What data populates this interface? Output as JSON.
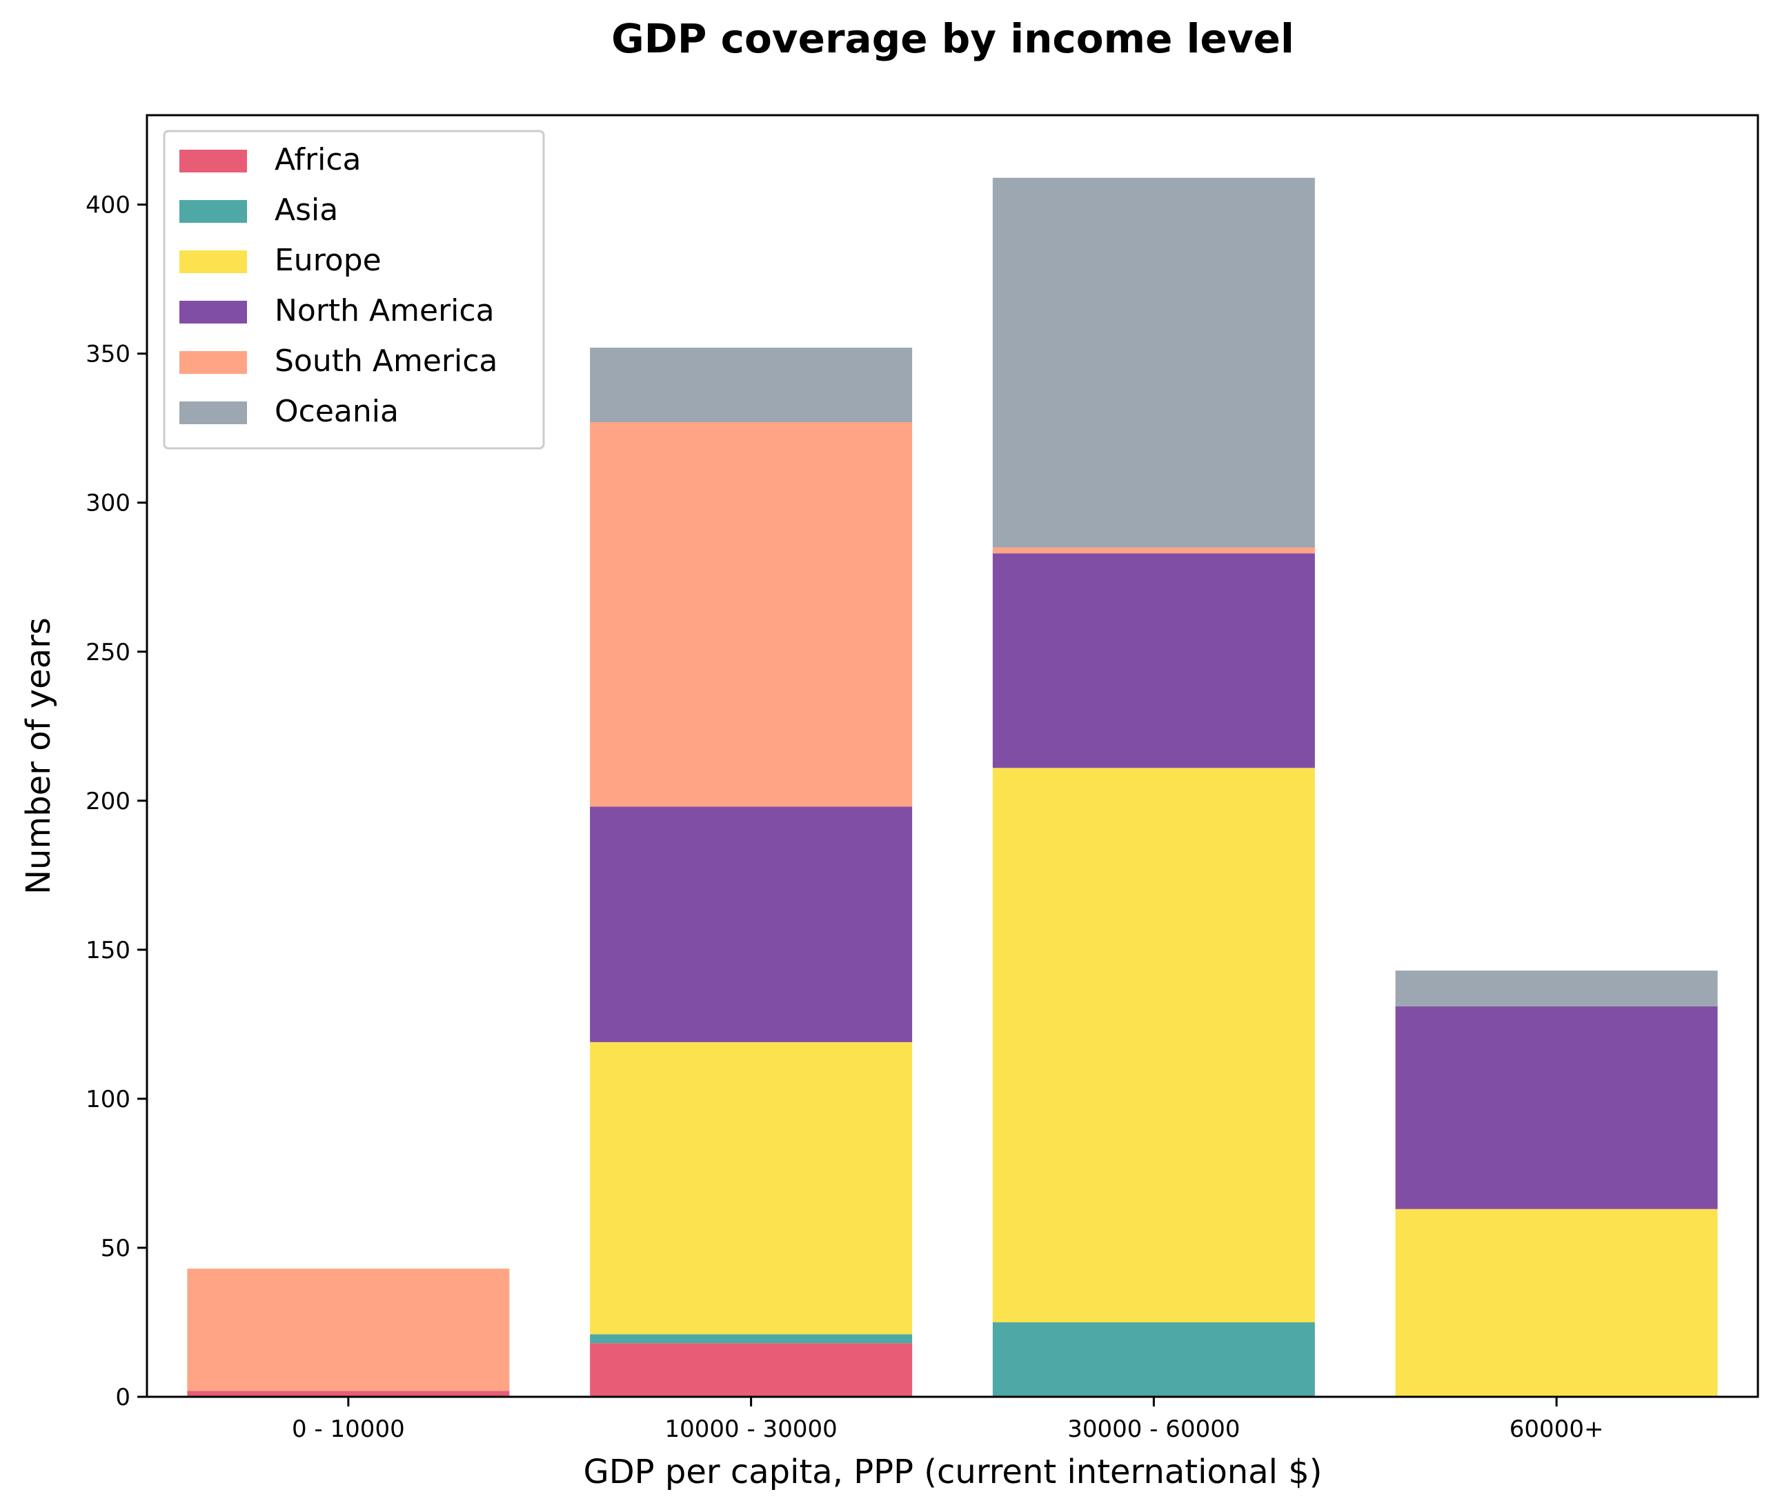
{
  "chart_data": {
    "type": "bar",
    "stacked": true,
    "title": "GDP coverage by income level",
    "xlabel": "GDP per capita, PPP (current international $)",
    "ylabel": "Number of years",
    "categories": [
      "0 - 10000",
      "10000 - 30000",
      "30000 - 60000",
      "60000+"
    ],
    "ylim": [
      0,
      430
    ],
    "yticks": [
      0,
      50,
      100,
      150,
      200,
      250,
      300,
      350,
      400
    ],
    "grid": false,
    "legend_position": "top-left",
    "series": [
      {
        "name": "Africa",
        "color": "#e85d75",
        "values": [
          2,
          18,
          0,
          0
        ]
      },
      {
        "name": "Asia",
        "color": "#4ea8a6",
        "values": [
          0,
          3,
          25,
          0
        ]
      },
      {
        "name": "Europe",
        "color": "#fde24f",
        "values": [
          0,
          98,
          186,
          63
        ]
      },
      {
        "name": "North America",
        "color": "#814ea6",
        "values": [
          0,
          79,
          72,
          68
        ]
      },
      {
        "name": "South America",
        "color": "#ffa585",
        "values": [
          41,
          129,
          2,
          0
        ]
      },
      {
        "name": "Oceania",
        "color": "#9ca7b1",
        "values": [
          0,
          25,
          124,
          12
        ]
      }
    ]
  }
}
